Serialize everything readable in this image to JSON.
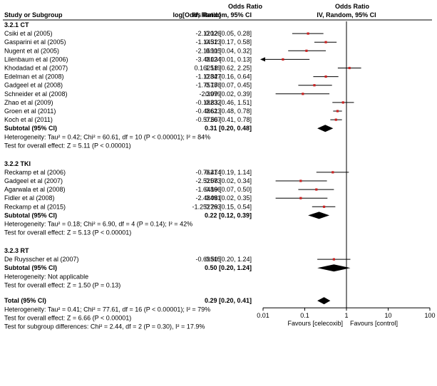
{
  "chart_data": {
    "type": "forest",
    "header": {
      "col_study": "Study or Subgroup",
      "col_log": "log[Odds Ratio]",
      "col_or_line1": "Odds Ratio",
      "col_or_line2": "IV, Random, 95% CI",
      "plot_line1": "Odds Ratio",
      "plot_line2": "IV, Random, 95% CI"
    },
    "x_axis": {
      "scale": "log",
      "ticks": [
        0.01,
        0.1,
        1,
        10,
        100
      ],
      "tick_labels": [
        "0.01",
        "0.1",
        "1",
        "10",
        "100"
      ],
      "favours_left": "Favours [celecoxib]",
      "favours_right": "Favours [control]"
    },
    "groups": [
      {
        "title": "3.2.1 CT",
        "studies": [
          {
            "name": "Csiki et al (2005)",
            "log_or": "-2.12026",
            "ci_text": "0.12 [0.05, 0.28]",
            "or": 0.12,
            "lo": 0.05,
            "hi": 0.28
          },
          {
            "name": "Gasparini et al (2005)",
            "log_or": "-1.14513",
            "ci_text": "0.32 [0.17, 0.58]",
            "or": 0.32,
            "lo": 0.17,
            "hi": 0.58
          },
          {
            "name": "Nugent et al (2005)",
            "log_or": "-2.16905",
            "ci_text": "0.11 [0.04, 0.32]",
            "or": 0.11,
            "lo": 0.04,
            "hi": 0.32
          },
          {
            "name": "Lilenbaum et al (2006)",
            "log_or": "-3.48124",
            "ci_text": "0.03 [0.01, 0.13]",
            "or": 0.03,
            "lo": 0.01,
            "hi": 0.13,
            "arrow_left": true
          },
          {
            "name": "Khodadad et al (2007)",
            "log_or": "0.162519",
            "ci_text": "1.18 [0.62, 2.25]",
            "or": 1.18,
            "lo": 0.62,
            "hi": 2.25
          },
          {
            "name": "Edelman et al (2008)",
            "log_or": "-1.12847",
            "ci_text": "0.32 [0.16, 0.64]",
            "or": 0.32,
            "lo": 0.16,
            "hi": 0.64
          },
          {
            "name": "Gadgeel et al (2008)",
            "log_or": "-1.75786",
            "ci_text": "0.17 [0.07, 0.45]",
            "or": 0.17,
            "lo": 0.07,
            "hi": 0.45
          },
          {
            "name": "Schneider et al (2008)",
            "log_or": "-2.3979",
            "ci_text": "0.09 [0.02, 0.39]",
            "or": 0.09,
            "lo": 0.02,
            "hi": 0.39
          },
          {
            "name": "Zhao et al (2009)",
            "log_or": "-0.18232",
            "ci_text": "0.83 [0.46, 1.51]",
            "or": 0.83,
            "lo": 0.46,
            "hi": 1.51
          },
          {
            "name": "Groen et al (2011)",
            "log_or": "-0.48623",
            "ci_text": "0.61 [0.48, 0.78]",
            "or": 0.61,
            "lo": 0.48,
            "hi": 0.78
          },
          {
            "name": "Koch et al (2011)",
            "log_or": "-0.57207",
            "ci_text": "0.56 [0.41, 0.78]",
            "or": 0.56,
            "lo": 0.41,
            "hi": 0.78
          }
        ],
        "subtotal": {
          "label": "Subtotal (95% CI)",
          "ci_text": "0.31 [0.20, 0.48]",
          "or": 0.31,
          "lo": 0.2,
          "hi": 0.48
        },
        "heterogeneity": "Heterogeneity: Tau² = 0.42; Chi² = 60.61, df = 10 (P < 0.00001); I² = 84%",
        "overall_effect": "Test for overall effect: Z = 5.11 (P < 0.00001)"
      },
      {
        "title": "3.2.2 TKI",
        "studies": [
          {
            "name": "Reckamp et al (2006)",
            "log_or": "-0.76214",
            "ci_text": "0.47 [0.19, 1.14]",
            "or": 0.47,
            "lo": 0.19,
            "hi": 1.14
          },
          {
            "name": "Gadgeel et al (2007)",
            "log_or": "-2.52573",
            "ci_text": "0.08 [0.02, 0.34]",
            "or": 0.08,
            "lo": 0.02,
            "hi": 0.34
          },
          {
            "name": "Agarwala et al (2008)",
            "log_or": "-1.64866",
            "ci_text": "0.19 [0.07, 0.50]",
            "or": 0.19,
            "lo": 0.07,
            "hi": 0.5
          },
          {
            "name": "Fidler et al (2008)",
            "log_or": "-2.48491",
            "ci_text": "0.08 [0.02, 0.35]",
            "or": 0.08,
            "lo": 0.02,
            "hi": 0.35
          },
          {
            "name": "Reckamp et al (2015)",
            "log_or": "-1.252763",
            "ci_text": "0.29 [0.15, 0.54]",
            "or": 0.29,
            "lo": 0.15,
            "hi": 0.54
          }
        ],
        "subtotal": {
          "label": "Subtotal (95% CI)",
          "ci_text": "0.22 [0.12, 0.39]",
          "or": 0.22,
          "lo": 0.12,
          "hi": 0.39
        },
        "heterogeneity": "Heterogeneity: Tau² = 0.18; Chi² = 6.90, df = 4 (P = 0.14); I² = 42%",
        "overall_effect": "Test for overall effect: Z = 5.13 (P < 0.00001)"
      },
      {
        "title": "3.2.3 RT",
        "studies": [
          {
            "name": "De Ruysscher et al (2007)",
            "log_or": "-0.69315",
            "ci_text": "0.50 [0.20, 1.24]",
            "or": 0.5,
            "lo": 0.2,
            "hi": 1.24
          }
        ],
        "subtotal": {
          "label": "Subtotal (95% CI)",
          "ci_text": "0.50 [0.20, 1.24]",
          "or": 0.5,
          "lo": 0.2,
          "hi": 1.24
        },
        "heterogeneity": "Heterogeneity: Not applicable",
        "overall_effect": "Test for overall effect: Z = 1.50 (P = 0.13)"
      }
    ],
    "total": {
      "label": "Total (95% CI)",
      "ci_text": "0.29 [0.20, 0.41]",
      "or": 0.29,
      "lo": 0.2,
      "hi": 0.41,
      "heterogeneity": "Heterogeneity: Tau² = 0.41; Chi² = 77.61, df = 16 (P < 0.00001); I² = 79%",
      "overall_effect": "Test for overall effect: Z = 6.66 (P < 0.00001)",
      "subgroup_diff": "Test for subgroup differences: Chi² = 2.44, df = 2 (P = 0.30), I² = 17.9%"
    },
    "colors": {
      "point": "#cc2222",
      "line": "#000000",
      "diamond": "#000000"
    }
  }
}
